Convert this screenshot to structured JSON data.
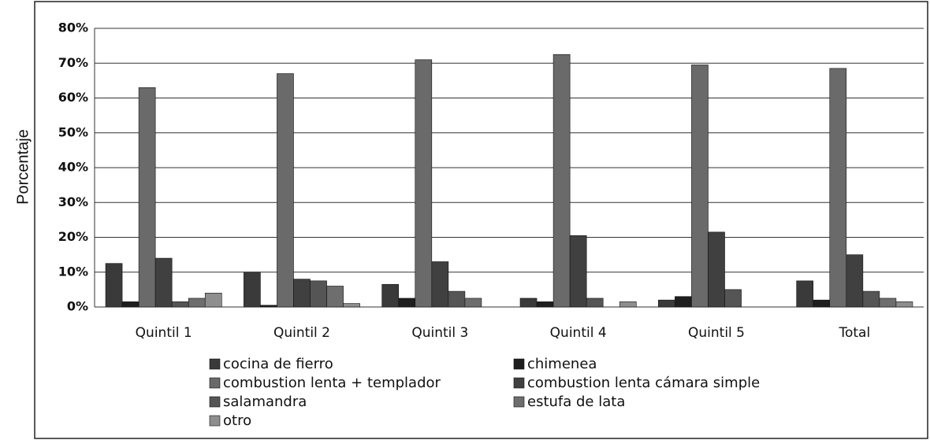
{
  "chart_data": {
    "type": "bar",
    "y_label": "Porcentaje",
    "categories": [
      "Quintil 1",
      "Quintil 2",
      "Quintil 3",
      "Quintil 4",
      "Quintil 5",
      "Total"
    ],
    "series": [
      {
        "name": "cocina de fierro",
        "color": "#3a3a3a",
        "values": [
          12.5,
          10,
          6.5,
          2.5,
          2,
          7.5
        ]
      },
      {
        "name": "chimenea",
        "color": "#1e1e1e",
        "values": [
          1.5,
          0.5,
          2.5,
          1.5,
          3,
          2
        ]
      },
      {
        "name": "combustion lenta + templador",
        "color": "#6a6a6a",
        "values": [
          63,
          67,
          71,
          72.5,
          69.5,
          68.5
        ]
      },
      {
        "name": "combustion lenta cámara simple",
        "color": "#404040",
        "values": [
          14,
          8,
          13,
          20.5,
          21.5,
          15
        ]
      },
      {
        "name": "salamandra",
        "color": "#555555",
        "values": [
          1.5,
          7.5,
          4.5,
          2.5,
          5,
          4.5
        ]
      },
      {
        "name": "estufa de lata",
        "color": "#6e6e6e",
        "values": [
          2.5,
          6,
          2.5,
          0,
          0,
          2.5
        ]
      },
      {
        "name": "otro",
        "color": "#8e8e8e",
        "values": [
          4,
          1,
          0,
          1.5,
          0,
          1.5
        ]
      }
    ],
    "ylim": [
      0,
      80
    ],
    "yticks": [
      {
        "value": 0,
        "label": "0%"
      },
      {
        "value": 10,
        "label": "10%"
      },
      {
        "value": 20,
        "label": "20%"
      },
      {
        "value": 30,
        "label": "30%"
      },
      {
        "value": 40,
        "label": "40%"
      },
      {
        "value": 50,
        "label": "50%"
      },
      {
        "value": 60,
        "label": "60%"
      },
      {
        "value": 70,
        "label": "70%"
      },
      {
        "value": 80,
        "label": "80%"
      }
    ],
    "grid": true
  }
}
